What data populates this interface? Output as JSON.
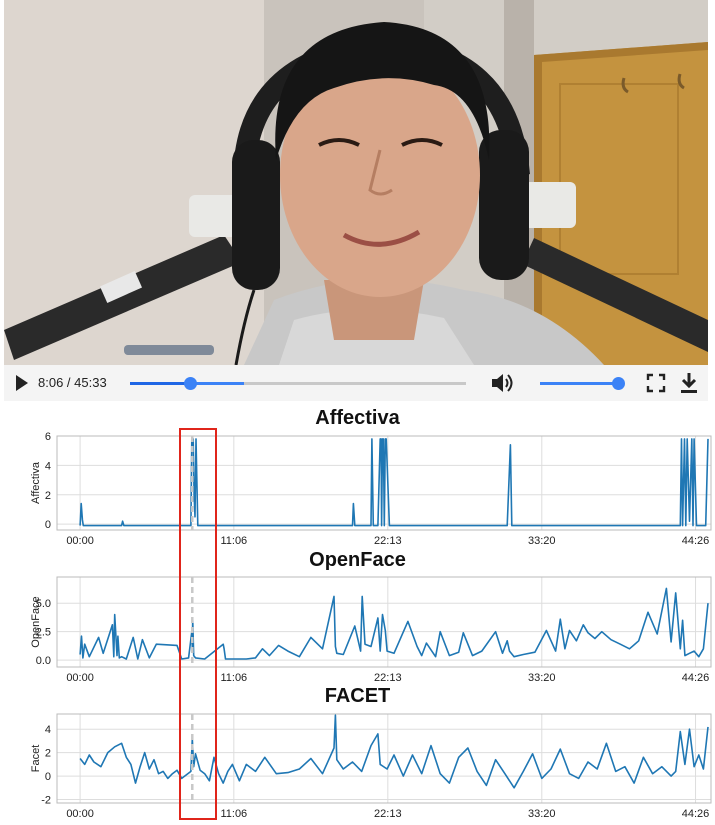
{
  "video": {
    "current_time": "8:06",
    "duration": "45:33",
    "time_display": "8:06 / 45:33",
    "progress_fraction": 0.178,
    "buffered_fraction": 0.34,
    "volume_fraction": 1.0
  },
  "colors": {
    "series": "#1f77b4",
    "accent": "#3b82f6",
    "highlight": "#e0251b",
    "cursor_line": "#c8c8c8",
    "grid": "#dddddd"
  },
  "icons": [
    "play-icon",
    "volume-icon",
    "fullscreen-icon",
    "download-icon"
  ],
  "chart_data": [
    {
      "type": "line",
      "title": "Affectiva",
      "ylabel": "Affectiva",
      "xlabel": "",
      "xticks": [
        "00:00",
        "11:06",
        "22:13",
        "33:20",
        "44:26"
      ],
      "xtick_seconds": [
        0,
        666,
        1333,
        2000,
        2666
      ],
      "xlim": [
        -100,
        2733
      ],
      "ylim": [
        -0.4,
        6.0
      ],
      "yticks": [
        0,
        2,
        4,
        6
      ],
      "grid": true,
      "cursor_seconds": 486,
      "x": [
        0,
        5,
        10,
        14,
        20,
        60,
        120,
        180,
        184,
        190,
        260,
        320,
        440,
        480,
        484,
        486,
        490,
        494,
        498,
        502,
        510,
        600,
        800,
        1000,
        1100,
        1180,
        1184,
        1190,
        1240,
        1260,
        1264,
        1270,
        1290,
        1300,
        1304,
        1306,
        1310,
        1314,
        1318,
        1322,
        1326,
        1340,
        1500,
        1700,
        1850,
        1864,
        1870,
        1880,
        2000,
        2200,
        2400,
        2600,
        2605,
        2610,
        2618,
        2624,
        2630,
        2640,
        2650,
        2655,
        2660,
        2670,
        2690,
        2700,
        2710,
        2720
      ],
      "y": [
        -0.1,
        1.4,
        0.3,
        -0.1,
        -0.1,
        -0.1,
        -0.1,
        -0.1,
        0.2,
        -0.1,
        -0.1,
        -0.1,
        -0.1,
        -0.1,
        5.8,
        5.4,
        5.8,
        2.0,
        0.5,
        5.8,
        -0.1,
        -0.1,
        -0.1,
        -0.1,
        -0.1,
        -0.1,
        1.4,
        -0.1,
        -0.1,
        -0.1,
        5.8,
        -0.1,
        -0.1,
        5.8,
        5.8,
        -0.1,
        5.8,
        5.8,
        -0.1,
        5.8,
        5.8,
        -0.1,
        -0.1,
        -0.1,
        -0.1,
        5.4,
        -0.1,
        -0.1,
        -0.1,
        -0.1,
        -0.1,
        -0.1,
        5.8,
        -0.1,
        5.8,
        -0.1,
        5.8,
        0.2,
        5.8,
        -0.1,
        5.8,
        -0.1,
        -0.1,
        -0.1,
        -0.1,
        5.8
      ]
    },
    {
      "type": "line",
      "title": "OpenFace",
      "ylabel": "OpenFace",
      "xlabel": "",
      "xticks": [
        "00:00",
        "11:06",
        "22:13",
        "33:20",
        "44:26"
      ],
      "xtick_seconds": [
        0,
        666,
        1333,
        2000,
        2666
      ],
      "xlim": [
        -100,
        2733
      ],
      "ylim": [
        -0.6,
        7.3
      ],
      "yticks": [
        0.0,
        2.5,
        5.0
      ],
      "ytick_labels": [
        "0.0",
        "2.5",
        "5.0"
      ],
      "grid": true,
      "cursor_seconds": 486,
      "x": [
        0,
        6,
        12,
        20,
        40,
        80,
        100,
        140,
        146,
        150,
        160,
        164,
        170,
        180,
        200,
        230,
        250,
        270,
        300,
        330,
        420,
        440,
        470,
        484,
        486,
        488,
        492,
        500,
        540,
        620,
        624,
        630,
        720,
        760,
        790,
        820,
        860,
        900,
        950,
        1000,
        1050,
        1100,
        1106,
        1112,
        1140,
        1190,
        1215,
        1222,
        1234,
        1260,
        1290,
        1300,
        1310,
        1322,
        1330,
        1360,
        1420,
        1460,
        1480,
        1500,
        1540,
        1560,
        1600,
        1640,
        1660,
        1700,
        1740,
        1800,
        1830,
        1850,
        1860,
        1880,
        1920,
        1970,
        2020,
        2060,
        2080,
        2100,
        2120,
        2150,
        2180,
        2200,
        2230,
        2260,
        2300,
        2340,
        2380,
        2420,
        2460,
        2500,
        2540,
        2560,
        2580,
        2600,
        2610,
        2620,
        2640,
        2660,
        2680,
        2700,
        2720
      ],
      "y": [
        0.5,
        2.1,
        0.2,
        1.4,
        0.3,
        2.0,
        0.6,
        3.1,
        0.3,
        4.0,
        0.4,
        2.1,
        0.2,
        0.3,
        0.1,
        2.0,
        0.1,
        1.8,
        0.2,
        1.4,
        1.3,
        0.1,
        0.2,
        2.5,
        1.1,
        3.6,
        0.4,
        0.2,
        0.1,
        1.4,
        1.0,
        0.1,
        0.1,
        0.2,
        1.0,
        0.4,
        1.3,
        0.8,
        0.3,
        2.0,
        1.0,
        5.6,
        1.2,
        0.6,
        0.5,
        3.0,
        0.8,
        5.6,
        1.4,
        1.2,
        3.7,
        0.8,
        4.0,
        2.6,
        0.8,
        0.6,
        3.4,
        1.2,
        0.4,
        1.5,
        0.3,
        2.5,
        0.4,
        0.7,
        2.4,
        0.4,
        0.8,
        2.5,
        0.6,
        1.7,
        0.8,
        0.3,
        0.5,
        0.7,
        2.6,
        0.8,
        3.6,
        1.0,
        2.6,
        1.7,
        3.1,
        2.4,
        1.9,
        2.5,
        1.8,
        1.4,
        1.0,
        1.7,
        4.2,
        2.3,
        6.3,
        1.6,
        5.9,
        1.0,
        3.5,
        0.4,
        0.6,
        0.8,
        0.3,
        1.0,
        5.0
      ]
    },
    {
      "type": "line",
      "title": "FACET",
      "ylabel": "Facet",
      "xlabel": "",
      "xticks": [
        "00:00",
        "11:06",
        "22:13",
        "33:20",
        "44:26"
      ],
      "xtick_seconds": [
        0,
        666,
        1333,
        2000,
        2666
      ],
      "xlim": [
        -100,
        2733
      ],
      "ylim": [
        -2.3,
        5.3
      ],
      "yticks": [
        -2,
        0,
        2,
        4
      ],
      "grid": true,
      "cursor_seconds": 486,
      "x": [
        0,
        20,
        40,
        60,
        90,
        120,
        150,
        180,
        200,
        220,
        240,
        260,
        280,
        300,
        320,
        340,
        360,
        380,
        400,
        420,
        440,
        460,
        480,
        486,
        492,
        500,
        520,
        540,
        560,
        580,
        600,
        620,
        640,
        660,
        690,
        720,
        760,
        800,
        850,
        900,
        950,
        1000,
        1050,
        1100,
        1106,
        1112,
        1140,
        1180,
        1220,
        1260,
        1290,
        1300,
        1330,
        1360,
        1400,
        1440,
        1480,
        1520,
        1560,
        1600,
        1640,
        1680,
        1720,
        1760,
        1800,
        1840,
        1880,
        1920,
        1960,
        2000,
        2040,
        2080,
        2120,
        2160,
        2200,
        2240,
        2280,
        2320,
        2360,
        2400,
        2440,
        2480,
        2520,
        2560,
        2580,
        2600,
        2620,
        2640,
        2660,
        2680,
        2700,
        2720
      ],
      "y": [
        1.5,
        1.0,
        1.8,
        1.2,
        0.8,
        2.0,
        2.5,
        2.8,
        1.6,
        1.0,
        -0.6,
        0.8,
        2.0,
        0.6,
        1.4,
        0.2,
        0.4,
        -0.2,
        0.2,
        0.5,
        -0.2,
        0.1,
        0.4,
        3.2,
        0.8,
        1.9,
        0.5,
        0.2,
        -0.4,
        1.6,
        0.2,
        -0.6,
        0.4,
        1.0,
        -0.4,
        1.0,
        0.4,
        1.6,
        0.2,
        0.3,
        0.6,
        1.5,
        0.2,
        2.4,
        5.2,
        1.4,
        0.6,
        1.2,
        0.4,
        2.6,
        3.6,
        1.0,
        0.6,
        1.8,
        0.0,
        1.8,
        0.2,
        2.6,
        0.2,
        -0.6,
        1.6,
        2.4,
        0.4,
        -0.8,
        1.4,
        0.2,
        -1.0,
        0.4,
        1.9,
        -0.2,
        0.6,
        2.3,
        0.2,
        -0.2,
        1.2,
        0.6,
        2.8,
        0.4,
        0.8,
        -0.6,
        1.6,
        0.2,
        0.8,
        0.0,
        0.4,
        3.8,
        1.0,
        4.0,
        0.8,
        1.8,
        0.6,
        4.2
      ]
    }
  ]
}
